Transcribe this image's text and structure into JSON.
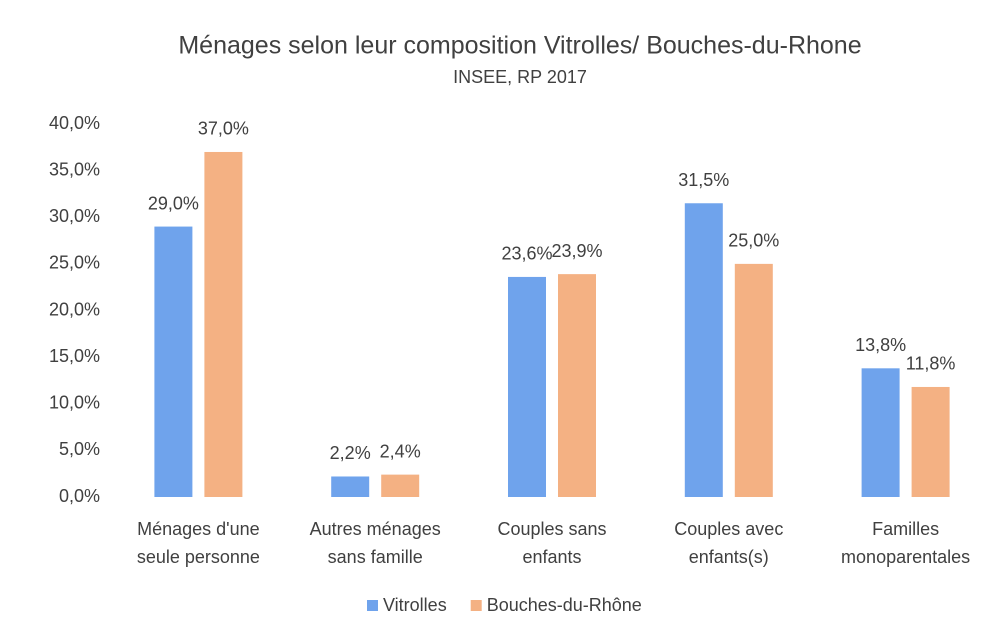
{
  "chart_data": {
    "type": "bar",
    "title": "Ménages selon leur composition Vitrolles/ Bouches-du-Rhone",
    "subtitle": "INSEE, RP 2017",
    "categories": [
      [
        "Ménages d'une",
        "seule personne"
      ],
      [
        "Autres ménages",
        "sans famille"
      ],
      [
        "Couples sans",
        "enfants"
      ],
      [
        "Couples avec",
        "enfants(s)"
      ],
      [
        "Familles",
        "monoparentales"
      ]
    ],
    "series": [
      {
        "name": "Vitrolles",
        "color": "#6fa3ec",
        "values": [
          29.0,
          2.2,
          23.6,
          31.5,
          13.8
        ],
        "value_labels": [
          "29,0%",
          "2,2%",
          "23,6%",
          "31,5%",
          "13,8%"
        ]
      },
      {
        "name": "Bouches-du-Rhône",
        "color": "#f4b183",
        "values": [
          37.0,
          2.4,
          23.9,
          25.0,
          11.8
        ],
        "value_labels": [
          "37,0%",
          "2,4%",
          "23,9%",
          "25,0%",
          "11,8%"
        ]
      }
    ],
    "ylim": [
      0,
      40
    ],
    "yticks": [
      {
        "value": 0,
        "label": "0,0%"
      },
      {
        "value": 5,
        "label": "5,0%"
      },
      {
        "value": 10,
        "label": "10,0%"
      },
      {
        "value": 15,
        "label": "15,0%"
      },
      {
        "value": 20,
        "label": "20,0%"
      },
      {
        "value": 25,
        "label": "25,0%"
      },
      {
        "value": 30,
        "label": "30,0%"
      },
      {
        "value": 35,
        "label": "35,0%"
      },
      {
        "value": 40,
        "label": "40,0%"
      }
    ],
    "grid": false,
    "legend": "bottom"
  }
}
